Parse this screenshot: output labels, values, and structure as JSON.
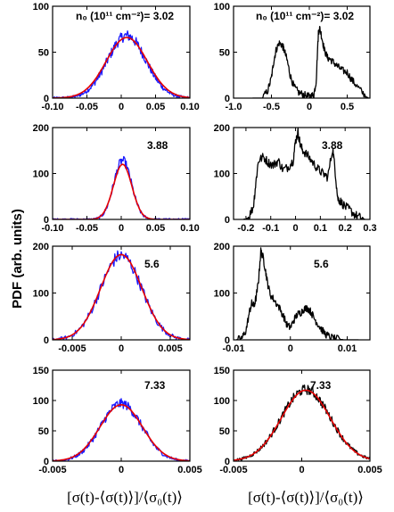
{
  "figure": {
    "ylabel": "PDF (arb. units)",
    "xlabel": "[σ(t)-⟨σ(t)⟩]/⟨σ₀(t)⟩",
    "colors": {
      "noisy": "#1a1aff",
      "fit": "#e60000",
      "black": "#000000"
    }
  },
  "chart_data": [
    {
      "id": "p1",
      "type": "line",
      "annotation": "n₀ (10¹¹ cm⁻²)= 3.02",
      "xlim": [
        -0.1,
        0.1
      ],
      "ylim": [
        0,
        100
      ],
      "xticks": [
        -0.1,
        -0.05,
        0,
        0.05,
        0.1
      ],
      "xtick_labels": [
        "-0.10",
        "-0.05",
        "0",
        "0.05",
        "0.10"
      ],
      "yticks": [
        0,
        50,
        100
      ],
      "ytick_labels": [
        "0",
        "50",
        "100"
      ],
      "series": [
        {
          "style": "noisy",
          "shape": "gauss",
          "amp": 68,
          "mu": 0.008,
          "sigma": 0.028,
          "noise": 6,
          "n": 240
        },
        {
          "style": "fit",
          "shape": "gauss",
          "amp": 66,
          "mu": 0.008,
          "sigma": 0.03,
          "noise": 0,
          "n": 120
        }
      ]
    },
    {
      "id": "p2",
      "type": "line",
      "annotation": "n₀ (10¹¹ cm⁻²)= 3.02",
      "xlim": [
        -1.0,
        0.8
      ],
      "ylim": [
        0,
        100
      ],
      "xticks": [
        -1.0,
        -0.5,
        0,
        0.5
      ],
      "xtick_labels": [
        "-1.0",
        "-0.5",
        "0",
        "0.5"
      ],
      "yticks": [
        0,
        50,
        100
      ],
      "ytick_labels": [
        "0",
        "50",
        "100"
      ],
      "series": [
        {
          "style": "black",
          "shape": "points",
          "noise": 4,
          "x": [
            -0.75,
            -0.62,
            -0.55,
            -0.5,
            -0.47,
            -0.44,
            -0.4,
            -0.36,
            -0.33,
            -0.29,
            -0.25,
            -0.2,
            -0.14,
            -0.08,
            -0.02,
            0.02,
            0.06,
            0.09,
            0.12,
            0.14,
            0.17,
            0.2,
            0.24,
            0.28,
            0.33,
            0.38,
            0.44,
            0.5,
            0.56,
            0.62,
            0.7,
            0.78
          ],
          "y": [
            0,
            0,
            8,
            22,
            40,
            52,
            60,
            58,
            52,
            40,
            24,
            12,
            6,
            4,
            2,
            2,
            4,
            18,
            72,
            76,
            64,
            52,
            44,
            42,
            38,
            34,
            30,
            28,
            20,
            14,
            6,
            0
          ]
        }
      ]
    },
    {
      "id": "p3",
      "type": "line",
      "annotation": "3.88",
      "xlim": [
        -0.1,
        0.1
      ],
      "ylim": [
        0,
        200
      ],
      "xticks": [
        -0.1,
        -0.05,
        0,
        0.05,
        0.1
      ],
      "xtick_labels": [
        "-0.10",
        "-0.05",
        "0",
        "0.05",
        "0.10"
      ],
      "yticks": [
        0,
        100,
        200
      ],
      "ytick_labels": [
        "0",
        "100",
        "200"
      ],
      "series": [
        {
          "style": "noisy",
          "shape": "gauss",
          "amp": 128,
          "mu": 0.002,
          "sigma": 0.013,
          "noise": 10,
          "n": 220
        },
        {
          "style": "fit",
          "shape": "gauss",
          "amp": 120,
          "mu": 0.002,
          "sigma": 0.0135,
          "noise": 0,
          "n": 120
        }
      ]
    },
    {
      "id": "p4",
      "type": "line",
      "annotation": "3.88",
      "xlim": [
        -0.25,
        0.3
      ],
      "ylim": [
        0,
        200
      ],
      "xticks": [
        -0.2,
        -0.1,
        0,
        0.1,
        0.2,
        0.3
      ],
      "xtick_labels": [
        "-0.2",
        "-0.1",
        "0",
        "0.1",
        "0.2",
        "0.3"
      ],
      "yticks": [
        0,
        100,
        200
      ],
      "ytick_labels": [
        "0",
        "100",
        "200"
      ],
      "series": [
        {
          "style": "black",
          "shape": "points",
          "noise": 10,
          "x": [
            -0.21,
            -0.19,
            -0.17,
            -0.16,
            -0.15,
            -0.13,
            -0.11,
            -0.09,
            -0.07,
            -0.05,
            -0.03,
            -0.01,
            0.0,
            0.01,
            0.02,
            0.03,
            0.05,
            0.07,
            0.09,
            0.11,
            0.13,
            0.15,
            0.16,
            0.17,
            0.18,
            0.2,
            0.22,
            0.24,
            0.26,
            0.28
          ],
          "y": [
            0,
            4,
            28,
            80,
            128,
            136,
            124,
            118,
            128,
            108,
            114,
            128,
            170,
            190,
            160,
            150,
            138,
            124,
            110,
            100,
            92,
            156,
            104,
            46,
            40,
            28,
            20,
            10,
            4,
            0
          ]
        }
      ]
    },
    {
      "id": "p5",
      "type": "line",
      "annotation": "5.6",
      "xlim": [
        -0.007,
        0.007
      ],
      "ylim": [
        0,
        200
      ],
      "xticks": [
        -0.005,
        0,
        0.005
      ],
      "xtick_labels": [
        "-0.005",
        "0",
        "0.005"
      ],
      "yticks": [
        0,
        100,
        200
      ],
      "ytick_labels": [
        "0",
        "100",
        "200"
      ],
      "series": [
        {
          "style": "noisy",
          "shape": "gauss",
          "amp": 180,
          "mu": 0.0,
          "sigma": 0.0021,
          "noise": 14,
          "n": 150
        },
        {
          "style": "fit",
          "shape": "gauss",
          "amp": 182,
          "mu": 0.0,
          "sigma": 0.0021,
          "noise": 0,
          "n": 120
        }
      ]
    },
    {
      "id": "p6",
      "type": "line",
      "annotation": "5.6",
      "xlim": [
        -0.01,
        0.014
      ],
      "ylim": [
        0,
        200
      ],
      "xticks": [
        -0.01,
        0,
        0.01
      ],
      "xtick_labels": [
        "-0.01",
        "0",
        "0.01"
      ],
      "yticks": [
        0,
        100,
        200
      ],
      "ytick_labels": [
        "0",
        "100",
        "200"
      ],
      "series": [
        {
          "style": "black",
          "shape": "points",
          "noise": 8,
          "x": [
            -0.0095,
            -0.0085,
            -0.0078,
            -0.0072,
            -0.0068,
            -0.0064,
            -0.006,
            -0.0056,
            -0.0052,
            -0.0048,
            -0.0044,
            -0.004,
            -0.0035,
            -0.0028,
            -0.002,
            -0.0012,
            -0.0006,
            0.0,
            0.0006,
            0.0012,
            0.0018,
            0.0024,
            0.003,
            0.0036,
            0.0042,
            0.0048,
            0.0055,
            0.0062,
            0.007,
            0.008,
            0.0095,
            0.012
          ],
          "y": [
            0,
            4,
            20,
            60,
            78,
            72,
            92,
            128,
            190,
            176,
            150,
            120,
            96,
            84,
            70,
            50,
            32,
            26,
            42,
            54,
            58,
            66,
            68,
            60,
            46,
            34,
            22,
            12,
            6,
            2,
            0,
            0
          ]
        }
      ]
    },
    {
      "id": "p7",
      "type": "line",
      "annotation": "7.33",
      "xlim": [
        -0.005,
        0.005
      ],
      "ylim": [
        0,
        150
      ],
      "xticks": [
        -0.005,
        0,
        0.005
      ],
      "xtick_labels": [
        "-0.005",
        "0",
        "0.005"
      ],
      "yticks": [
        0,
        50,
        100,
        150
      ],
      "ytick_labels": [
        "0",
        "50",
        "100",
        "150"
      ],
      "series": [
        {
          "style": "noisy",
          "shape": "gauss",
          "amp": 95,
          "mu": 0.0,
          "sigma": 0.0015,
          "noise": 8,
          "n": 200
        },
        {
          "style": "fit",
          "shape": "gauss",
          "amp": 93,
          "mu": 0.0,
          "sigma": 0.00155,
          "noise": 0,
          "n": 120
        }
      ]
    },
    {
      "id": "p8",
      "type": "line",
      "annotation": "7.33",
      "xlim": [
        -0.005,
        0.005
      ],
      "ylim": [
        0,
        150
      ],
      "xticks": [
        -0.005,
        0,
        0.005
      ],
      "xtick_labels": [
        "-0.005",
        "0",
        "0.005"
      ],
      "yticks": [
        0,
        50,
        100,
        150
      ],
      "ytick_labels": [
        "0",
        "50",
        "100",
        "150"
      ],
      "series": [
        {
          "style": "black",
          "shape": "gauss",
          "amp": 118,
          "mu": 0.0003,
          "sigma": 0.0018,
          "noise": 8,
          "n": 200
        },
        {
          "style": "fit",
          "shape": "gauss",
          "amp": 117,
          "mu": 0.0003,
          "sigma": 0.0018,
          "noise": 0,
          "n": 120
        }
      ]
    }
  ]
}
